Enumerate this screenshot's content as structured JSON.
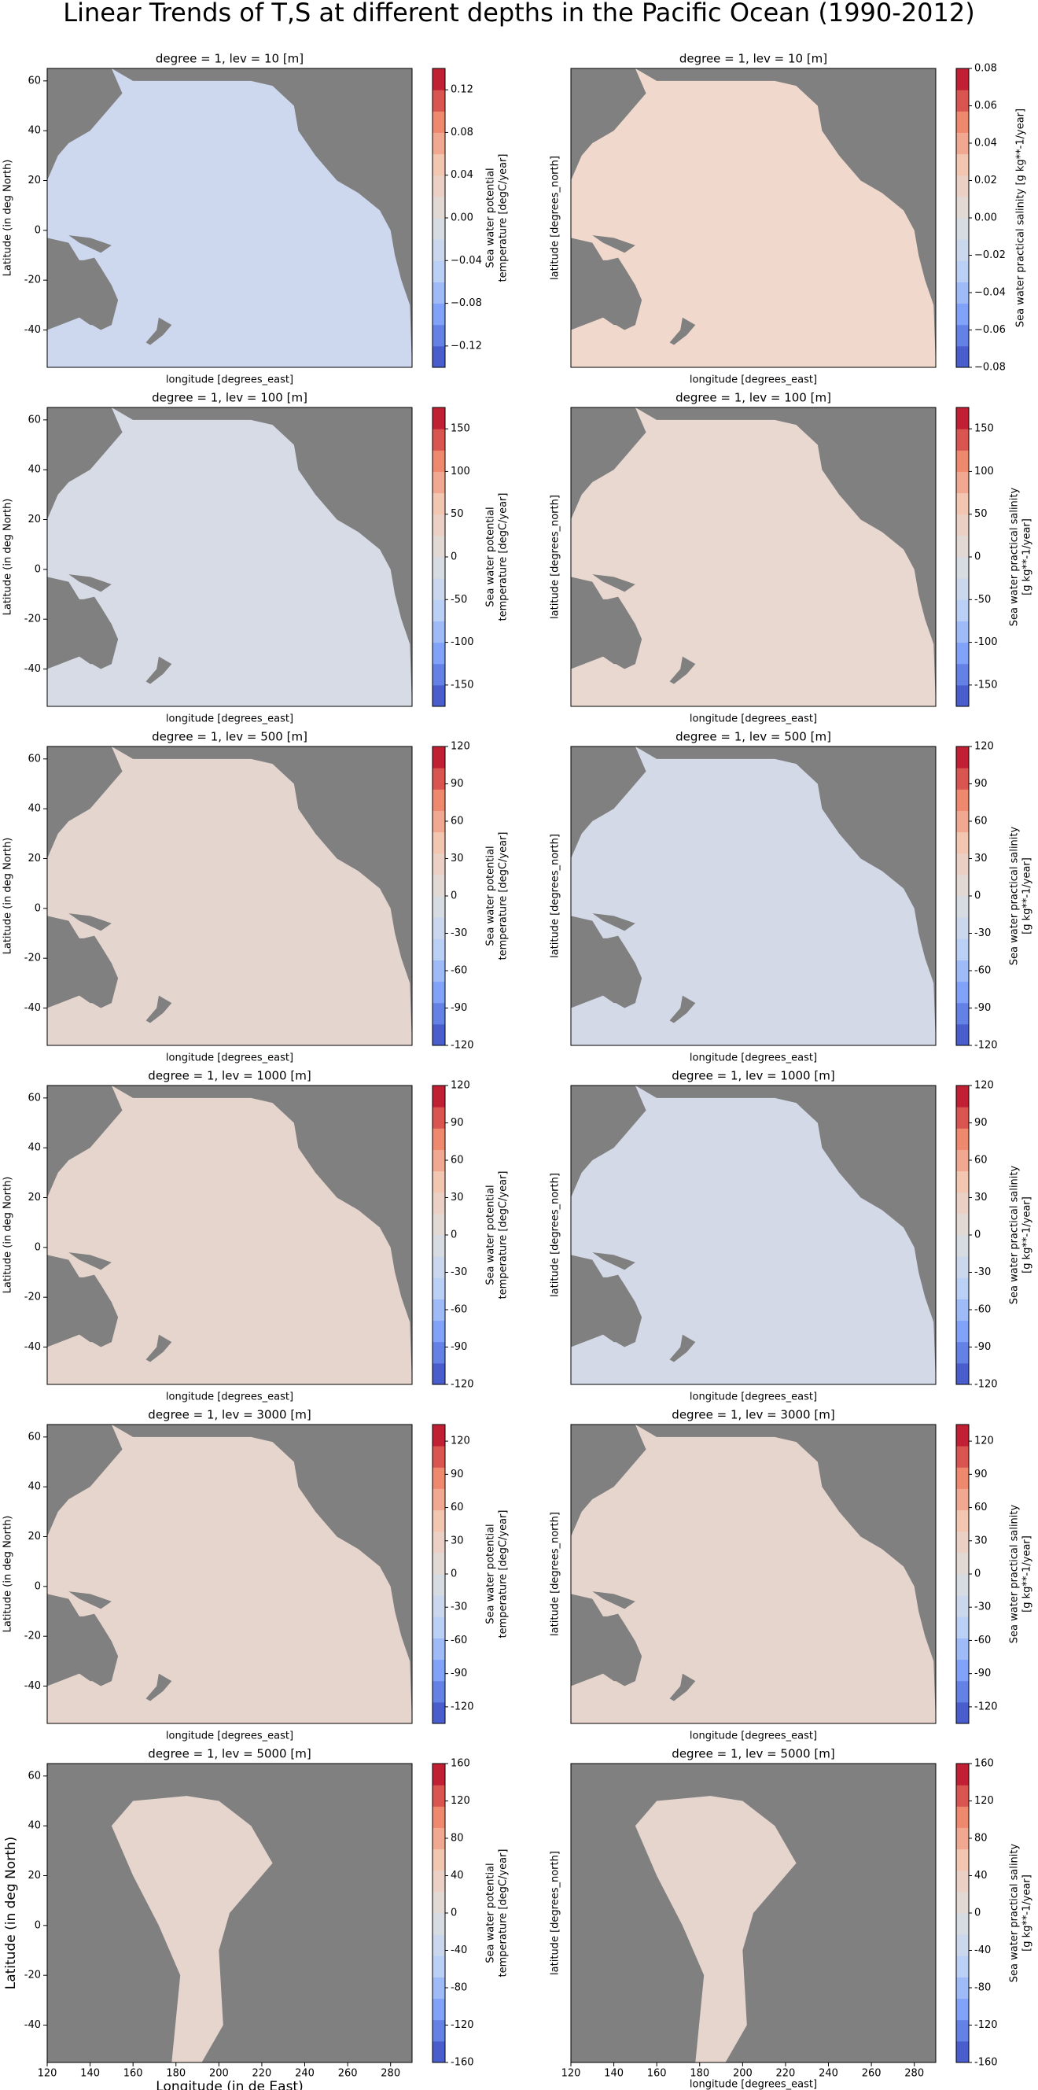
{
  "title": "Linear Trends of T,S at different depths in the Pacific Ocean (1990-2012)",
  "chart_data": [
    {
      "type": "contour",
      "title": "degree = 1, lev = 10 [m]",
      "xlabel": "longitude [degrees_east]",
      "ylabel": "Latitude (in deg North)",
      "xlim": [
        120,
        290
      ],
      "ylim": [
        -55,
        65
      ],
      "yticks": [
        -40,
        -20,
        0,
        20,
        40,
        60
      ],
      "colorbar": {
        "label": [
          "Sea water potential",
          "temperature [degC/year]"
        ],
        "lim": [
          -0.14,
          0.14
        ],
        "ticks": [
          {
            "value": -0.12,
            "label": "−0.12"
          },
          {
            "value": -0.08,
            "label": "−0.08"
          },
          {
            "value": -0.04,
            "label": "−0.04"
          },
          {
            "value": 0,
            "label": "0.00"
          },
          {
            "value": 0.04,
            "label": "0.04"
          },
          {
            "value": 0.08,
            "label": "0.08"
          },
          {
            "value": 0.12,
            "label": "0.12"
          }
        ]
      },
      "colors": {
        "land": "#808080",
        "ocean": "#cdd8ee"
      }
    },
    {
      "type": "contour",
      "title": "degree = 1, lev = 10 [m]",
      "xlabel": "longitude [degrees_east]",
      "ylabel": "latitude [degrees_north]",
      "xlim": [
        120,
        290
      ],
      "ylim": [
        -55,
        65
      ],
      "colorbar": {
        "label": [
          "Sea water practical salinity [g kg**-1/year]"
        ],
        "lim": [
          -0.08,
          0.08
        ],
        "ticks": [
          {
            "value": -0.08,
            "label": "−0.08"
          },
          {
            "value": -0.06,
            "label": "−0.06"
          },
          {
            "value": -0.04,
            "label": "−0.04"
          },
          {
            "value": -0.02,
            "label": "−0.02"
          },
          {
            "value": 0,
            "label": "0.00"
          },
          {
            "value": 0.02,
            "label": "0.02"
          },
          {
            "value": 0.04,
            "label": "0.04"
          },
          {
            "value": 0.06,
            "label": "0.06"
          },
          {
            "value": 0.08,
            "label": "0.08"
          }
        ]
      },
      "colors": {
        "land": "#808080",
        "ocean": "#f0d9cc"
      }
    },
    {
      "type": "contour",
      "title": "degree = 1, lev = 100 [m]",
      "xlabel": "longitude [degrees_east]",
      "ylabel": "Latitude (in deg North)",
      "xlim": [
        120,
        290
      ],
      "ylim": [
        -55,
        65
      ],
      "yticks": [
        -40,
        -20,
        0,
        20,
        40,
        60
      ],
      "colorbar": {
        "label": [
          "Sea water potential",
          "temperature [degC/year]"
        ],
        "lim": [
          -175,
          175
        ],
        "ticks": [
          -150,
          -100,
          -50,
          0,
          50,
          100,
          150
        ]
      },
      "colors": {
        "land": "#808080",
        "ocean": "#d6dbe6"
      }
    },
    {
      "type": "contour",
      "title": "degree = 1, lev = 100 [m]",
      "xlabel": "longitude [degrees_east]",
      "ylabel": "latitude [degrees_north]",
      "xlim": [
        120,
        290
      ],
      "ylim": [
        -55,
        65
      ],
      "colorbar": {
        "label": [
          "Sea water practical salinity",
          "[g kg**-1/year]"
        ],
        "lim": [
          -175,
          175
        ],
        "ticks": [
          -150,
          -100,
          -50,
          0,
          50,
          100,
          150
        ]
      },
      "colors": {
        "land": "#808080",
        "ocean": "#e8d8d0"
      }
    },
    {
      "type": "contour",
      "title": "degree = 1, lev = 500 [m]",
      "xlabel": "longitude [degrees_east]",
      "ylabel": "Latitude (in deg North)",
      "xlim": [
        120,
        290
      ],
      "ylim": [
        -55,
        65
      ],
      "yticks": [
        -40,
        -20,
        0,
        20,
        40,
        60
      ],
      "colorbar": {
        "label": [
          "Sea water potential",
          "temperature [degC/year]"
        ],
        "lim": [
          -120,
          120
        ],
        "ticks": [
          -120,
          -90,
          -60,
          -30,
          0,
          30,
          60,
          90,
          120
        ]
      },
      "colors": {
        "land": "#808080",
        "ocean": "#e4d5cf"
      }
    },
    {
      "type": "contour",
      "title": "degree = 1, lev = 500 [m]",
      "xlabel": "longitude [degrees_east]",
      "ylabel": "latitude [degrees_north]",
      "xlim": [
        120,
        290
      ],
      "ylim": [
        -55,
        65
      ],
      "colorbar": {
        "label": [
          "Sea water practical salinity",
          "[g kg**-1/year]"
        ],
        "lim": [
          -120,
          120
        ],
        "ticks": [
          -120,
          -90,
          -60,
          -30,
          0,
          30,
          60,
          90,
          120
        ]
      },
      "colors": {
        "land": "#808080",
        "ocean": "#d3d9e6"
      }
    },
    {
      "type": "contour",
      "title": "degree = 1, lev = 1000 [m]",
      "xlabel": "longitude [degrees_east]",
      "ylabel": "Latitude (in deg North)",
      "xlim": [
        120,
        290
      ],
      "ylim": [
        -55,
        65
      ],
      "yticks": [
        -40,
        -20,
        0,
        20,
        40,
        60
      ],
      "colorbar": {
        "label": [
          "Sea water potential",
          "temperature [degC/year]"
        ],
        "lim": [
          -120,
          120
        ],
        "ticks": [
          -120,
          -90,
          -60,
          -30,
          0,
          30,
          60,
          90,
          120
        ]
      },
      "colors": {
        "land": "#808080",
        "ocean": "#e6d5cd"
      }
    },
    {
      "type": "contour",
      "title": "degree = 1, lev = 1000 [m]",
      "xlabel": "longitude [degrees_east]",
      "ylabel": "latitude [degrees_north]",
      "xlim": [
        120,
        290
      ],
      "ylim": [
        -55,
        65
      ],
      "colorbar": {
        "label": [
          "Sea water practical salinity",
          "[g kg**-1/year]"
        ],
        "lim": [
          -120,
          120
        ],
        "ticks": [
          -120,
          -90,
          -60,
          -30,
          0,
          30,
          60,
          90,
          120
        ]
      },
      "colors": {
        "land": "#808080",
        "ocean": "#d3d9e6"
      }
    },
    {
      "type": "contour",
      "title": "degree = 1, lev = 3000 [m]",
      "xlabel": "longitude [degrees_east]",
      "ylabel": "Latitude (in deg North)",
      "xlim": [
        120,
        290
      ],
      "ylim": [
        -55,
        65
      ],
      "yticks": [
        -40,
        -20,
        0,
        20,
        40,
        60
      ],
      "colorbar": {
        "label": [
          "Sea water potential",
          "temperature [degC/year]"
        ],
        "lim": [
          -135,
          135
        ],
        "ticks": [
          -120,
          -90,
          -60,
          -30,
          0,
          30,
          60,
          90,
          120
        ]
      },
      "colors": {
        "land": "#808080",
        "ocean": "#e6d5cd"
      }
    },
    {
      "type": "contour",
      "title": "degree = 1, lev = 3000 [m]",
      "xlabel": "longitude [degrees_east]",
      "ylabel": "latitude [degrees_north]",
      "xlim": [
        120,
        290
      ],
      "ylim": [
        -55,
        65
      ],
      "colorbar": {
        "label": [
          "Sea water practical salinity",
          "[g kg**-1/year]"
        ],
        "lim": [
          -135,
          135
        ],
        "ticks": [
          -120,
          -90,
          -60,
          -30,
          0,
          30,
          60,
          90,
          120
        ]
      },
      "colors": {
        "land": "#808080",
        "ocean": "#e6d5cd"
      }
    },
    {
      "type": "contour",
      "title": "degree = 1, lev = 5000 [m]",
      "xlabel": "Longitude (in de East)",
      "ylabel": "Latitude (in deg North)",
      "xlim": [
        120,
        290
      ],
      "ylim": [
        -55,
        65
      ],
      "yticks": [
        -40,
        -20,
        0,
        20,
        40,
        60
      ],
      "xticks": [
        120,
        140,
        160,
        180,
        200,
        220,
        240,
        260,
        280
      ],
      "colorbar": {
        "label": [
          "Sea water potential",
          "temperature [degC/year]"
        ],
        "lim": [
          -160,
          160
        ],
        "ticks": [
          -160,
          -120,
          -80,
          -40,
          0,
          40,
          80,
          120,
          160
        ]
      },
      "colors": {
        "land": "#808080",
        "ocean": "#e6d5cd"
      }
    },
    {
      "type": "contour",
      "title": "degree = 1, lev = 5000 [m]",
      "xlabel": "longitude [degrees_east]",
      "ylabel": "latitude [degrees_north]",
      "xlim": [
        120,
        290
      ],
      "ylim": [
        -55,
        65
      ],
      "xticks": [
        120,
        140,
        160,
        180,
        200,
        220,
        240,
        260,
        280
      ],
      "colorbar": {
        "label": [
          "Sea water practical salinity",
          "[g kg**-1/year]"
        ],
        "lim": [
          -160,
          160
        ],
        "ticks": [
          -160,
          -120,
          -80,
          -40,
          0,
          40,
          80,
          120,
          160
        ]
      },
      "colors": {
        "land": "#808080",
        "ocean": "#e6d5cd"
      }
    }
  ]
}
